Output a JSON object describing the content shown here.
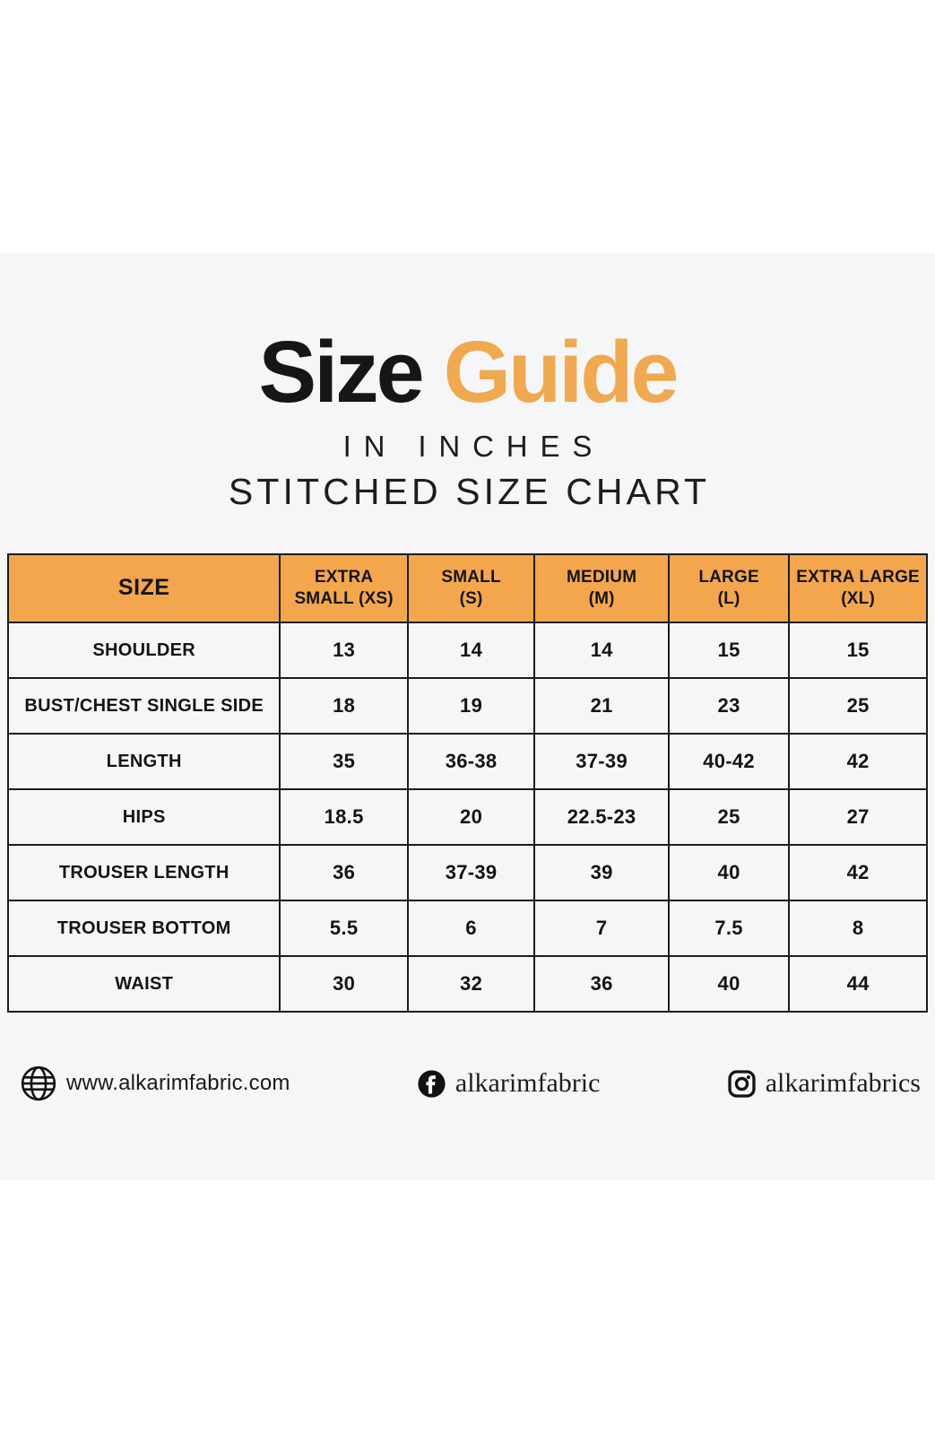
{
  "page": {
    "title_black": "Size",
    "title_orange": "Guide",
    "subtitle_units": "IN INCHES",
    "subtitle_chart": "STITCHED SIZE CHART"
  },
  "colors": {
    "accent_orange_header": "#f4a64d",
    "accent_orange_title": "#f0a94f",
    "band_gray": "#f5f6f8",
    "text_black": "#1b1b1b"
  },
  "chart_data": {
    "type": "table",
    "title": "Size Guide — In Inches — Stitched Size Chart",
    "columns": [
      "SIZE",
      "EXTRA\nSMALL (XS)",
      "SMALL\n(S)",
      "MEDIUM\n(M)",
      "LARGE\n(L)",
      "EXTRA LARGE\n(XL)"
    ],
    "rows": [
      {
        "label": "SHOULDER",
        "values": [
          "13",
          "14",
          "14",
          "15",
          "15"
        ]
      },
      {
        "label": "BUST/CHEST SINGLE SIDE",
        "values": [
          "18",
          "19",
          "21",
          "23",
          "25"
        ]
      },
      {
        "label": "LENGTH",
        "values": [
          "35",
          "36-38",
          "37-39",
          "40-42",
          "42"
        ]
      },
      {
        "label": "HIPS",
        "values": [
          "18.5",
          "20",
          "22.5-23",
          "25",
          "27"
        ]
      },
      {
        "label": "TROUSER LENGTH",
        "values": [
          "36",
          "37-39",
          "39",
          "40",
          "42"
        ]
      },
      {
        "label": "TROUSER BOTTOM",
        "values": [
          "5.5",
          "6",
          "7",
          "7.5",
          "8"
        ]
      },
      {
        "label": "WAIST",
        "values": [
          "30",
          "32",
          "36",
          "40",
          "44"
        ]
      }
    ]
  },
  "footer": {
    "website": "www.alkarimfabric.com",
    "facebook_handle": "alkarimfabric",
    "instagram_handle": "alkarimfabrics"
  }
}
